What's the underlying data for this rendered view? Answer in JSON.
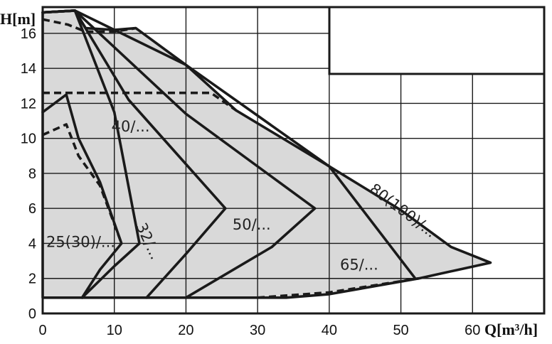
{
  "chart_data": {
    "type": "line",
    "title": "",
    "xlabel": "Q[m³/h]",
    "ylabel": "H[m]",
    "xlim": [
      0,
      70
    ],
    "ylim": [
      0,
      17.5
    ],
    "x_ticks": [
      "0",
      "10",
      "20",
      "30",
      "40",
      "50",
      "60"
    ],
    "y_ticks": [
      "0",
      "2",
      "4",
      "6",
      "8",
      "10",
      "12",
      "14",
      "16"
    ],
    "grid": true,
    "fill_color": "#d9d9d9",
    "line_color": "#1a1a1a",
    "envelope": [
      [
        0,
        17.2
      ],
      [
        4.5,
        17.3
      ],
      [
        6,
        16.3
      ],
      [
        10,
        16.2
      ],
      [
        13,
        16.3
      ],
      [
        20,
        14.2
      ],
      [
        27,
        11.6
      ],
      [
        40,
        8.4
      ],
      [
        50,
        5.9
      ],
      [
        57,
        3.8
      ],
      [
        62.5,
        2.9
      ],
      [
        52.5,
        2.0
      ],
      [
        40,
        1.1
      ],
      [
        34,
        0.9
      ],
      [
        0,
        0.9
      ]
    ],
    "series": [
      {
        "name": "25(30)/...",
        "style": "solid",
        "points": [
          [
            0,
            11.5
          ],
          [
            3.3,
            12.5
          ],
          [
            5,
            10
          ],
          [
            8,
            7.5
          ],
          [
            11,
            4
          ],
          [
            8,
            2.5
          ],
          [
            5.5,
            0.9
          ]
        ]
      },
      {
        "name": "25(30)/...",
        "style": "dashed",
        "points": [
          [
            0,
            10.2
          ],
          [
            3.3,
            10.8
          ],
          [
            5,
            9
          ],
          [
            8,
            7.3
          ],
          [
            11,
            4
          ]
        ]
      },
      {
        "name": "32/...",
        "style": "solid",
        "points": [
          [
            0,
            17.2
          ],
          [
            4.5,
            17.3
          ],
          [
            10,
            11.5
          ],
          [
            13.5,
            4
          ],
          [
            10,
            2.7
          ],
          [
            5.5,
            0.9
          ]
        ]
      },
      {
        "name": "40/...",
        "style": "solid",
        "points": [
          [
            0,
            17.2
          ],
          [
            4.5,
            17.3
          ],
          [
            12,
            12.2
          ],
          [
            25.5,
            6
          ],
          [
            20,
            3.4
          ],
          [
            14.5,
            0.9
          ]
        ]
      },
      {
        "name": "50/...",
        "style": "solid",
        "points": [
          [
            0,
            17.2
          ],
          [
            4.5,
            17.3
          ],
          [
            20,
            11.4
          ],
          [
            38,
            6
          ],
          [
            32,
            3.8
          ],
          [
            20,
            0.9
          ]
        ]
      },
      {
        "name": "65/...",
        "style": "solid",
        "points": [
          [
            0,
            17.2
          ],
          [
            4.5,
            17.3
          ],
          [
            20,
            14.2
          ],
          [
            40,
            8.4
          ],
          [
            52,
            2.0
          ]
        ]
      },
      {
        "name": "65/...",
        "style": "dashed",
        "points": [
          [
            0,
            16.8
          ],
          [
            3.5,
            16.5
          ],
          [
            6,
            16.1
          ],
          [
            10,
            16.1
          ],
          [
            13,
            16.3
          ]
        ]
      },
      {
        "name": "80(100)/...",
        "style": "dashed",
        "points": [
          [
            0,
            12.6
          ],
          [
            23.5,
            12.6
          ],
          [
            27,
            11.6
          ]
        ]
      },
      {
        "name": "80(100)/...",
        "style": "dashed",
        "points": [
          [
            30,
            0.9
          ],
          [
            40,
            1.2
          ],
          [
            52.5,
            2.0
          ]
        ]
      }
    ],
    "labels": [
      {
        "text": "40/...",
        "x": 9.6,
        "y": 10.4
      },
      {
        "text": "32/...",
        "x": 13,
        "y": 5.0,
        "rotate": 65
      },
      {
        "text": "25(30)/...",
        "x": 0.5,
        "y": 3.8
      },
      {
        "text": "50/...",
        "x": 26.5,
        "y": 4.8
      },
      {
        "text": "65/...",
        "x": 41.5,
        "y": 2.5
      },
      {
        "text": "80(100)/...",
        "x": 45.5,
        "y": 7.0,
        "rotate": 37
      }
    ]
  }
}
